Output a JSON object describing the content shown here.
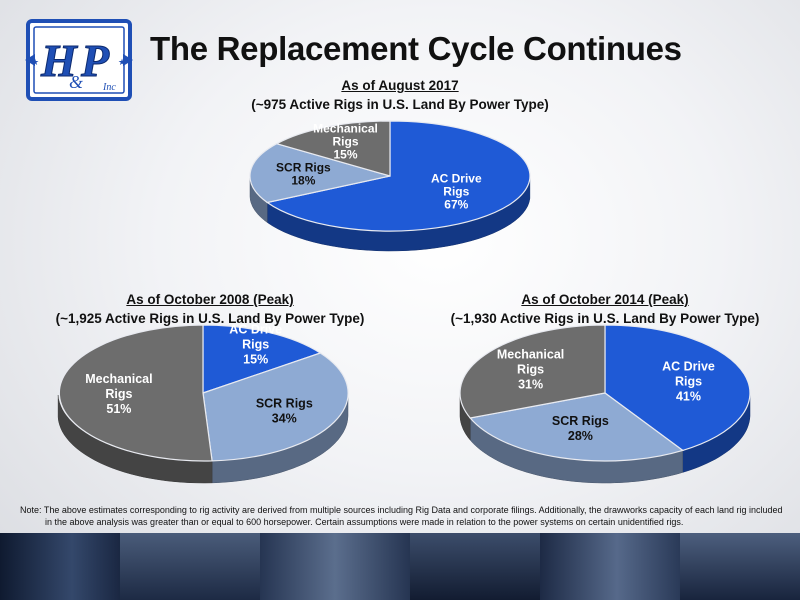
{
  "title": "The Replacement Cycle Continues",
  "logo": {
    "main": "H",
    "sub1": "P",
    "amp": "&",
    "inc": "Inc",
    "color": "#1f4fb5"
  },
  "colors": {
    "ac": "#1f5ad6",
    "scr": "#8eaad3",
    "mech": "#6d6d6d"
  },
  "note": {
    "line1": "Note:   The above estimates corresponding to rig activity are derived from multiple sources including Rig Data and corporate filings.  Additionally, the drawworks capacity of each land rig included",
    "line2": "in the above analysis was greater than or equal to 600 horsepower.  Certain assumptions were made in relation to the power systems on certain unidentified rigs."
  },
  "chart_data": [
    {
      "type": "pie",
      "title": "As of August 2017",
      "subtitle": "(~975 Active Rigs in U.S. Land By Power Type)",
      "slices": [
        {
          "label": "AC Drive Rigs",
          "value": 67,
          "text": "67%",
          "color": "#1f5ad6"
        },
        {
          "label": "SCR Rigs",
          "value": 18,
          "text": "18%",
          "color": "#8eaad3"
        },
        {
          "label": "Mechanical Rigs",
          "value": 15,
          "text": "15%",
          "color": "#6d6d6d"
        }
      ]
    },
    {
      "type": "pie",
      "title": "As of October 2008 (Peak)",
      "subtitle": "(~1,925 Active Rigs in U.S. Land By Power Type)",
      "slices": [
        {
          "label": "AC Drive Rigs",
          "value": 15,
          "text": "15%",
          "color": "#1f5ad6"
        },
        {
          "label": "SCR Rigs",
          "value": 34,
          "text": "34%",
          "color": "#8eaad3"
        },
        {
          "label": "Mechanical Rigs",
          "value": 51,
          "text": "51%",
          "color": "#6d6d6d"
        }
      ]
    },
    {
      "type": "pie",
      "title": "As of October 2014 (Peak)",
      "subtitle": "(~1,930 Active Rigs in U.S. Land By Power Type)",
      "slices": [
        {
          "label": "AC Drive Rigs",
          "value": 41,
          "text": "41%",
          "color": "#1f5ad6"
        },
        {
          "label": "SCR Rigs",
          "value": 28,
          "text": "28%",
          "color": "#8eaad3"
        },
        {
          "label": "Mechanical Rigs",
          "value": 31,
          "text": "31%",
          "color": "#6d6d6d"
        }
      ]
    }
  ]
}
